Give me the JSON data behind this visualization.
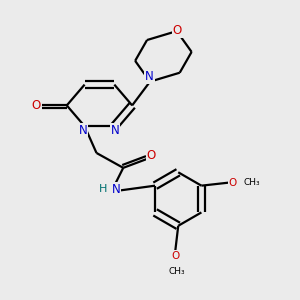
{
  "bg_color": "#ebebeb",
  "atom_colors": {
    "C": "#000000",
    "N": "#0000cc",
    "O": "#cc0000",
    "H": "#007070"
  },
  "bond_color": "#000000",
  "font_size": 8.5,
  "line_width": 1.6
}
